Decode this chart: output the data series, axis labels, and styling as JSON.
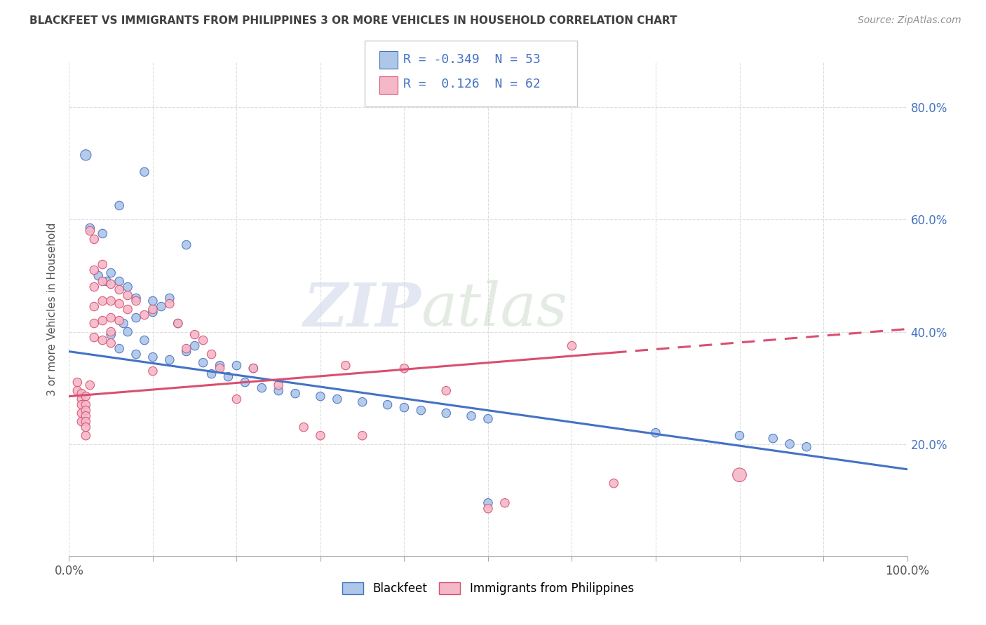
{
  "title": "BLACKFEET VS IMMIGRANTS FROM PHILIPPINES 3 OR MORE VEHICLES IN HOUSEHOLD CORRELATION CHART",
  "source": "Source: ZipAtlas.com",
  "ylabel": "3 or more Vehicles in Household",
  "xlim": [
    0.0,
    1.0
  ],
  "ylim": [
    0.0,
    0.88
  ],
  "xticks": [
    0.0,
    0.1,
    0.2,
    0.3,
    0.4,
    0.5,
    0.6,
    0.7,
    0.8,
    0.9,
    1.0
  ],
  "xticklabels": [
    "0.0%",
    "",
    "",
    "",
    "",
    "",
    "",
    "",
    "",
    "",
    "100.0%"
  ],
  "yticks": [
    0.0,
    0.2,
    0.4,
    0.6,
    0.8
  ],
  "yticklabels": [
    "",
    "20.0%",
    "40.0%",
    "60.0%",
    "80.0%"
  ],
  "watermark_zip": "ZIP",
  "watermark_atlas": "atlas",
  "legend_R1": "-0.349",
  "legend_N1": "53",
  "legend_R2": "0.126",
  "legend_N2": "62",
  "color_blue": "#aec6e8",
  "color_pink": "#f4b8c8",
  "line_blue": "#4472c4",
  "line_pink": "#d94f70",
  "legend_text_color": "#4472c4",
  "title_color": "#404040",
  "source_color": "#909090",
  "grid_color": "#dddddd",
  "blue_line_y0": 0.365,
  "blue_line_y1": 0.155,
  "pink_line_y0": 0.285,
  "pink_line_y1": 0.405,
  "blue_scatter": [
    [
      0.02,
      0.715
    ],
    [
      0.06,
      0.625
    ],
    [
      0.09,
      0.685
    ],
    [
      0.14,
      0.555
    ],
    [
      0.025,
      0.585
    ],
    [
      0.04,
      0.575
    ],
    [
      0.05,
      0.505
    ],
    [
      0.035,
      0.5
    ],
    [
      0.045,
      0.49
    ],
    [
      0.06,
      0.49
    ],
    [
      0.07,
      0.48
    ],
    [
      0.08,
      0.46
    ],
    [
      0.1,
      0.455
    ],
    [
      0.12,
      0.46
    ],
    [
      0.11,
      0.445
    ],
    [
      0.1,
      0.435
    ],
    [
      0.08,
      0.425
    ],
    [
      0.065,
      0.415
    ],
    [
      0.13,
      0.415
    ],
    [
      0.07,
      0.4
    ],
    [
      0.05,
      0.395
    ],
    [
      0.09,
      0.385
    ],
    [
      0.15,
      0.375
    ],
    [
      0.06,
      0.37
    ],
    [
      0.14,
      0.365
    ],
    [
      0.08,
      0.36
    ],
    [
      0.1,
      0.355
    ],
    [
      0.12,
      0.35
    ],
    [
      0.16,
      0.345
    ],
    [
      0.18,
      0.34
    ],
    [
      0.2,
      0.34
    ],
    [
      0.22,
      0.335
    ],
    [
      0.17,
      0.325
    ],
    [
      0.19,
      0.32
    ],
    [
      0.21,
      0.31
    ],
    [
      0.23,
      0.3
    ],
    [
      0.25,
      0.295
    ],
    [
      0.27,
      0.29
    ],
    [
      0.3,
      0.285
    ],
    [
      0.32,
      0.28
    ],
    [
      0.35,
      0.275
    ],
    [
      0.38,
      0.27
    ],
    [
      0.4,
      0.265
    ],
    [
      0.42,
      0.26
    ],
    [
      0.45,
      0.255
    ],
    [
      0.48,
      0.25
    ],
    [
      0.5,
      0.245
    ],
    [
      0.7,
      0.22
    ],
    [
      0.8,
      0.215
    ],
    [
      0.84,
      0.21
    ],
    [
      0.86,
      0.2
    ],
    [
      0.88,
      0.195
    ],
    [
      0.5,
      0.095
    ]
  ],
  "pink_scatter": [
    [
      0.01,
      0.31
    ],
    [
      0.01,
      0.295
    ],
    [
      0.015,
      0.29
    ],
    [
      0.015,
      0.28
    ],
    [
      0.015,
      0.27
    ],
    [
      0.015,
      0.255
    ],
    [
      0.015,
      0.24
    ],
    [
      0.02,
      0.285
    ],
    [
      0.02,
      0.27
    ],
    [
      0.02,
      0.26
    ],
    [
      0.02,
      0.25
    ],
    [
      0.02,
      0.24
    ],
    [
      0.02,
      0.23
    ],
    [
      0.02,
      0.215
    ],
    [
      0.025,
      0.305
    ],
    [
      0.025,
      0.58
    ],
    [
      0.03,
      0.565
    ],
    [
      0.03,
      0.51
    ],
    [
      0.03,
      0.48
    ],
    [
      0.03,
      0.445
    ],
    [
      0.03,
      0.415
    ],
    [
      0.03,
      0.39
    ],
    [
      0.04,
      0.52
    ],
    [
      0.04,
      0.49
    ],
    [
      0.04,
      0.455
    ],
    [
      0.04,
      0.42
    ],
    [
      0.04,
      0.385
    ],
    [
      0.05,
      0.485
    ],
    [
      0.05,
      0.455
    ],
    [
      0.05,
      0.425
    ],
    [
      0.05,
      0.4
    ],
    [
      0.05,
      0.38
    ],
    [
      0.06,
      0.475
    ],
    [
      0.06,
      0.45
    ],
    [
      0.06,
      0.42
    ],
    [
      0.07,
      0.465
    ],
    [
      0.07,
      0.44
    ],
    [
      0.08,
      0.455
    ],
    [
      0.09,
      0.43
    ],
    [
      0.1,
      0.44
    ],
    [
      0.1,
      0.33
    ],
    [
      0.12,
      0.45
    ],
    [
      0.13,
      0.415
    ],
    [
      0.14,
      0.37
    ],
    [
      0.15,
      0.395
    ],
    [
      0.16,
      0.385
    ],
    [
      0.17,
      0.36
    ],
    [
      0.18,
      0.335
    ],
    [
      0.2,
      0.28
    ],
    [
      0.22,
      0.335
    ],
    [
      0.25,
      0.305
    ],
    [
      0.28,
      0.23
    ],
    [
      0.3,
      0.215
    ],
    [
      0.33,
      0.34
    ],
    [
      0.35,
      0.215
    ],
    [
      0.4,
      0.335
    ],
    [
      0.45,
      0.295
    ],
    [
      0.5,
      0.085
    ],
    [
      0.52,
      0.095
    ],
    [
      0.6,
      0.375
    ],
    [
      0.65,
      0.13
    ],
    [
      0.8,
      0.145
    ]
  ],
  "blue_scatter_sizes": [
    120,
    80,
    80,
    80,
    80,
    80,
    80,
    80,
    80,
    80,
    80,
    80,
    80,
    80,
    80,
    80,
    80,
    80,
    80,
    80,
    80,
    80,
    80,
    80,
    80,
    80,
    80,
    80,
    80,
    80,
    80,
    80,
    80,
    80,
    80,
    80,
    80,
    80,
    80,
    80,
    80,
    80,
    80,
    80,
    80,
    80,
    80,
    80,
    80,
    80,
    80,
    80,
    80
  ],
  "pink_scatter_sizes": [
    80,
    80,
    80,
    80,
    80,
    80,
    80,
    80,
    80,
    80,
    80,
    80,
    80,
    80,
    80,
    80,
    80,
    80,
    80,
    80,
    80,
    80,
    80,
    80,
    80,
    80,
    80,
    80,
    80,
    80,
    80,
    80,
    80,
    80,
    80,
    80,
    80,
    80,
    80,
    80,
    80,
    80,
    80,
    80,
    80,
    80,
    80,
    80,
    80,
    80,
    80,
    80,
    80,
    80,
    80,
    80,
    80,
    80,
    80,
    80,
    80,
    200
  ]
}
